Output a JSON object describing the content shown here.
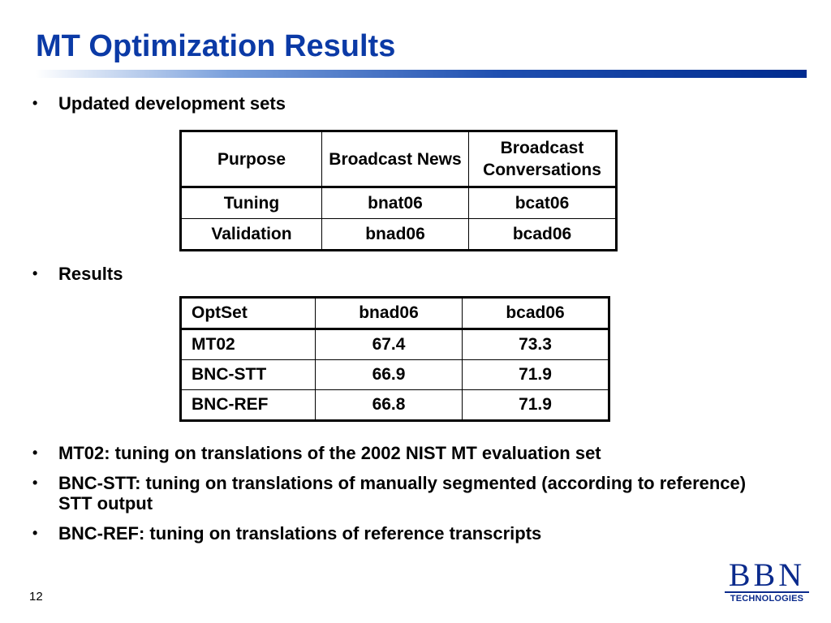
{
  "title": "MT Optimization Results",
  "bullets": {
    "b1": "Updated development sets",
    "b2": "Results",
    "b3": "MT02: tuning on translations of the 2002 NIST MT evaluation set",
    "b4": "BNC-STT:  tuning on translations of manually segmented (according to reference) STT output",
    "b5": "BNC-REF:  tuning on translations of reference transcripts"
  },
  "bullet_symbol": "•",
  "dev_table": {
    "headers": [
      "Purpose",
      "Broadcast News",
      "Broadcast Conversations"
    ],
    "rows": [
      [
        "Tuning",
        "bnat06",
        "bcat06"
      ],
      [
        "Validation",
        "bnad06",
        "bcad06"
      ]
    ]
  },
  "results_table": {
    "headers": [
      "OptSet",
      "bnad06",
      "bcad06"
    ],
    "rows": [
      [
        "MT02",
        "67.4",
        "73.3"
      ],
      [
        "BNC-STT",
        "66.9",
        "71.9"
      ],
      [
        "BNC-REF",
        "66.8",
        "71.9"
      ]
    ]
  },
  "page_number": "12",
  "logo": {
    "mark": "BBN",
    "sub": "TECHNOLOGIES"
  },
  "colors": {
    "title": "#0b3aa6",
    "logo": "#0a2a8c"
  }
}
